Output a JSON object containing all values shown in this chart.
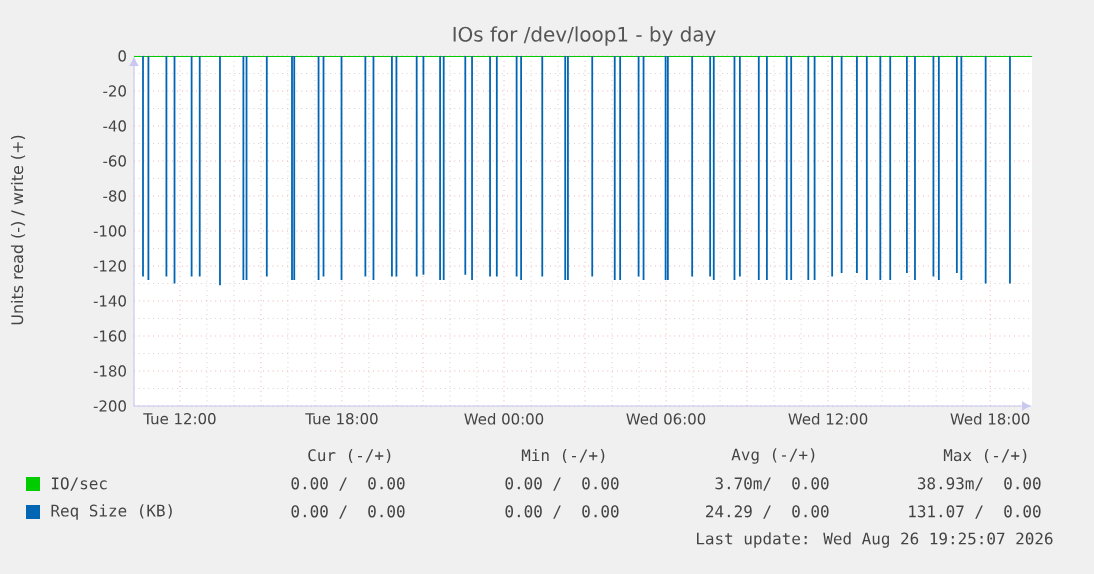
{
  "chart_data": {
    "type": "bar",
    "title": "IOs for /dev/loop1 - by day",
    "ylabel": "Units read (-) / write (+)",
    "xlim": [
      "2026-08-25T10:18",
      "2026-08-26T19:33"
    ],
    "ylim": [
      -200,
      0
    ],
    "xticks": [
      {
        "value": "2026-08-25T12:00",
        "label": "Tue 12:00"
      },
      {
        "value": "2026-08-25T15:00",
        "label": null
      },
      {
        "value": "2026-08-25T18:00",
        "label": "Tue 18:00"
      },
      {
        "value": "2026-08-25T21:00",
        "label": null
      },
      {
        "value": "2026-08-26T00:00",
        "label": "Wed 00:00"
      },
      {
        "value": "2026-08-26T03:00",
        "label": null
      },
      {
        "value": "2026-08-26T06:00",
        "label": "Wed 06:00"
      },
      {
        "value": "2026-08-26T09:00",
        "label": null
      },
      {
        "value": "2026-08-26T12:00",
        "label": "Wed 12:00"
      },
      {
        "value": "2026-08-26T15:00",
        "label": null
      },
      {
        "value": "2026-08-26T18:00",
        "label": "Wed 18:00"
      }
    ],
    "yticks": [
      0,
      -20,
      -40,
      -60,
      -80,
      -100,
      -120,
      -140,
      -160,
      -180,
      -200
    ],
    "grid": true,
    "legend": "bottom",
    "series": [
      {
        "name": "IO/sec",
        "type": "line",
        "color": "#00cc00",
        "x": [
          "2026-08-25T10:18",
          "2026-08-26T19:33"
        ],
        "values": [
          0,
          0
        ]
      },
      {
        "name": "Req Size (KB)",
        "color": "#0066b3",
        "x": [
          "2026-08-25T10:38",
          "2026-08-25T10:50",
          "2026-08-25T11:30",
          "2026-08-25T11:48",
          "2026-08-25T12:26",
          "2026-08-25T12:44",
          "2026-08-25T13:29",
          "2026-08-25T14:21",
          "2026-08-25T14:28",
          "2026-08-25T15:13",
          "2026-08-25T16:09",
          "2026-08-25T16:14",
          "2026-08-25T17:08",
          "2026-08-25T17:19",
          "2026-08-25T17:59",
          "2026-08-25T18:52",
          "2026-08-25T19:10",
          "2026-08-25T19:51",
          "2026-08-25T20:01",
          "2026-08-25T20:46",
          "2026-08-25T21:01",
          "2026-08-25T21:38",
          "2026-08-25T21:46",
          "2026-08-25T22:34",
          "2026-08-25T22:49",
          "2026-08-25T23:29",
          "2026-08-25T23:44",
          "2026-08-26T00:28",
          "2026-08-26T00:38",
          "2026-08-26T01:25",
          "2026-08-26T02:16",
          "2026-08-26T02:22",
          "2026-08-26T03:16",
          "2026-08-26T04:06",
          "2026-08-26T04:18",
          "2026-08-26T04:59",
          "2026-08-26T05:10",
          "2026-08-26T05:59",
          "2026-08-26T06:04",
          "2026-08-26T06:58",
          "2026-08-26T07:38",
          "2026-08-26T07:46",
          "2026-08-26T08:32",
          "2026-08-26T08:44",
          "2026-08-26T09:26",
          "2026-08-26T09:44",
          "2026-08-26T10:28",
          "2026-08-26T10:38",
          "2026-08-26T11:16",
          "2026-08-26T11:30",
          "2026-08-26T12:09",
          "2026-08-26T12:30",
          "2026-08-26T13:04",
          "2026-08-26T13:26",
          "2026-08-26T13:56",
          "2026-08-26T14:18",
          "2026-08-26T14:55",
          "2026-08-26T15:13",
          "2026-08-26T15:54",
          "2026-08-26T16:06",
          "2026-08-26T16:46",
          "2026-08-26T16:56",
          "2026-08-26T17:50",
          "2026-08-26T18:44"
        ],
        "values": [
          -126,
          -128,
          -126,
          -130,
          -126,
          -126,
          -131,
          -128,
          -128,
          -126,
          -128,
          -128,
          -128,
          -126,
          -128,
          -126,
          -128,
          -126,
          -126,
          -126,
          -125,
          -128,
          -128,
          -125,
          -128,
          -126,
          -126,
          -126,
          -128,
          -126,
          -128,
          -128,
          -126,
          -128,
          -128,
          -126,
          -128,
          -128,
          -128,
          -126,
          -126,
          -128,
          -128,
          -126,
          -128,
          -128,
          -128,
          -128,
          -128,
          -128,
          -126,
          -124,
          -124,
          -128,
          -128,
          -128,
          -124,
          -128,
          -126,
          -128,
          -124,
          -128,
          -130,
          -130
        ]
      }
    ],
    "annotations": [
      "Cur (-/+)",
      "Min (-/+)",
      "Avg (-/+)",
      "Max (-/+)",
      "0.00 /  0.00",
      "0.00 /  0.00",
      "3.70m/  0.00",
      "38.93m/  0.00",
      "0.00 /  0.00",
      "0.00 /  0.00",
      "24.29 /  0.00",
      "131.07 /  0.00",
      "Last update: Wed Aug 26 19:25:07 2026"
    ]
  }
}
